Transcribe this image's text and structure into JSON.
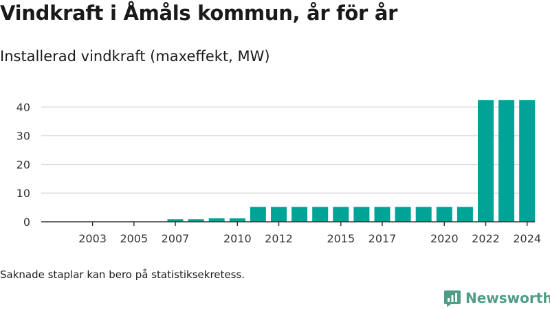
{
  "header": {
    "title": "Vindkraft i Åmåls kommun, år för år",
    "subtitle": "Installerad vindkraft (maxeffekt, MW)"
  },
  "footer": {
    "note": "Saknade staplar kan bero på statistiksekretess.",
    "brand": "Newsworthy"
  },
  "colors": {
    "bar": "#00a396",
    "grid": "#dddddd",
    "axis": "#333333",
    "text": "#333333",
    "brand": "#4f9d86"
  },
  "chart_data": {
    "type": "bar",
    "title": "Installerad vindkraft (maxeffekt, MW)",
    "xlabel": "",
    "ylabel": "",
    "ylim": [
      0,
      45
    ],
    "yticks": [
      0,
      10,
      20,
      30,
      40
    ],
    "grid": true,
    "categories": [
      "2002",
      "2003",
      "2004",
      "2005",
      "2006",
      "2007",
      "2008",
      "2009",
      "2010",
      "2011",
      "2012",
      "2013",
      "2014",
      "2015",
      "2016",
      "2017",
      "2018",
      "2019",
      "2020",
      "2021",
      "2022",
      "2023",
      "2024"
    ],
    "xtick_labels": [
      "2003",
      "2005",
      "2007",
      "2010",
      "2012",
      "2015",
      "2017",
      "2020",
      "2022",
      "2024"
    ],
    "values": [
      0,
      0,
      0,
      0,
      0,
      0.9,
      0.9,
      1.2,
      1.2,
      5.2,
      5.2,
      5.2,
      5.2,
      5.2,
      5.2,
      5.2,
      5.2,
      5.2,
      5.2,
      5.2,
      42.4,
      42.4,
      42.4
    ]
  }
}
